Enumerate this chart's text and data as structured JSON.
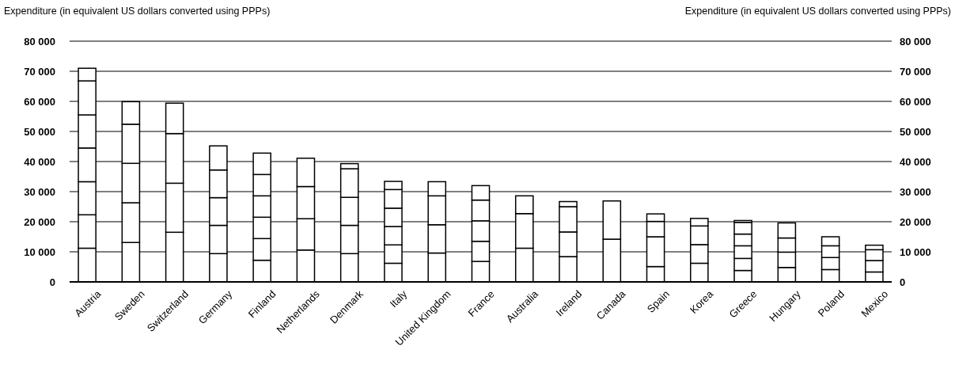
{
  "chart_data": {
    "type": "bar",
    "stacked": true,
    "grid": "y",
    "ylabel": "Expenditure (in equivalent US dollars converted using PPPs)",
    "y2label": "Expenditure (in equivalent US dollars converted using PPPs)",
    "categories": [
      "Austria",
      "Sweden",
      "Switzerland",
      "Germany",
      "Finland",
      "Netherlands",
      "Denmark",
      "Italy",
      "United Kingdom",
      "France",
      "Australia",
      "Ireland",
      "Canada",
      "Spain",
      "Korea",
      "Greece",
      "Hungary",
      "Poland",
      "Mexico"
    ],
    "ylim": [
      0,
      80000
    ],
    "yticks": [
      {
        "value": 0,
        "label": "0"
      },
      {
        "value": 10000,
        "label": "10 000"
      },
      {
        "value": 20000,
        "label": "20 000"
      },
      {
        "value": 30000,
        "label": "30 000"
      },
      {
        "value": 40000,
        "label": "40 000"
      },
      {
        "value": 50000,
        "label": "50 000"
      },
      {
        "value": 60000,
        "label": "60 000"
      },
      {
        "value": 70000,
        "label": "70 000"
      },
      {
        "value": 80000,
        "label": "80 000"
      }
    ],
    "y2lim": [
      0,
      80000
    ],
    "y2ticks": [
      {
        "value": 0,
        "label": "0"
      },
      {
        "value": 10000,
        "label": "10 000"
      },
      {
        "value": 20000,
        "label": "20 000"
      },
      {
        "value": 30000,
        "label": "30 000"
      },
      {
        "value": 40000,
        "label": "40 000"
      },
      {
        "value": 50000,
        "label": "50 000"
      },
      {
        "value": 60000,
        "label": "60 000"
      },
      {
        "value": 70000,
        "label": "70 000"
      },
      {
        "value": 80000,
        "label": "80 000"
      }
    ],
    "series": [
      {
        "color": "#ffffff",
        "values": [
          11200,
          13100,
          16500,
          9400,
          7200,
          10600,
          9400,
          6200,
          9600,
          6800,
          11200,
          8400,
          14200,
          5100,
          6200,
          3800,
          4800,
          4100,
          3300
        ]
      },
      {
        "color": "#ffffff",
        "values": [
          11100,
          13200,
          16300,
          9400,
          7200,
          10400,
          9400,
          6100,
          9400,
          6700,
          11500,
          8200,
          12700,
          9900,
          6200,
          4000,
          5100,
          4000,
          3800
        ]
      },
      {
        "color": "#ffffff",
        "values": [
          11000,
          13100,
          16500,
          9200,
          7100,
          10700,
          9300,
          6100,
          9600,
          6800,
          5900,
          8400,
          null,
          5100,
          6200,
          4200,
          4700,
          3900,
          3600
        ]
      },
      {
        "color": "#ffffff",
        "values": [
          11200,
          13000,
          10100,
          9200,
          7100,
          9400,
          9500,
          6100,
          4700,
          6900,
          null,
          1700,
          null,
          2500,
          2500,
          3900,
          5000,
          3000,
          1500
        ]
      },
      {
        "color": "#ffffff",
        "values": [
          11000,
          7500,
          null,
          8000,
          7100,
          null,
          1700,
          6200,
          null,
          4800,
          null,
          null,
          null,
          null,
          null,
          3900,
          null,
          null,
          null
        ]
      },
      {
        "color": "#ffffff",
        "values": [
          11300,
          null,
          null,
          null,
          7100,
          null,
          null,
          2700,
          null,
          null,
          null,
          null,
          null,
          null,
          null,
          600,
          null,
          null,
          null
        ]
      },
      {
        "color": "#ffffff",
        "values": [
          4200,
          null,
          null,
          null,
          null,
          null,
          null,
          null,
          null,
          null,
          null,
          null,
          null,
          null,
          null,
          null,
          null,
          null,
          null
        ]
      }
    ]
  }
}
